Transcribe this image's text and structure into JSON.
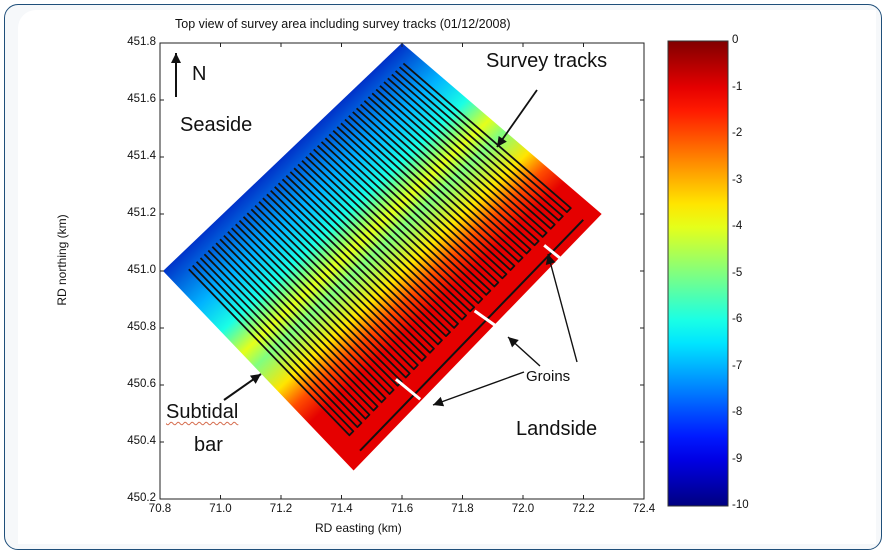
{
  "chart_data": {
    "type": "heatmap",
    "title": "Top view of survey area including survey tracks (01/12/2008)",
    "xlabel": "RD easting (km)",
    "ylabel": "RD northing (km)",
    "xlim": [
      70.8,
      72.4
    ],
    "ylim": [
      450.2,
      451.8
    ],
    "x_ticks": [
      "70.8",
      "71.0",
      "71.2",
      "71.4",
      "71.6",
      "71.8",
      "72.0",
      "72.2",
      "72.4"
    ],
    "y_ticks": [
      "450.2",
      "450.4",
      "450.6",
      "450.8",
      "451.0",
      "451.2",
      "451.4",
      "451.6",
      "451.8"
    ],
    "colorbar": {
      "range": [
        -10,
        0
      ],
      "ticks": [
        "0",
        "-1",
        "-2",
        "-3",
        "-4",
        "-5",
        "-6",
        "-7",
        "-8",
        "-9",
        "-10"
      ],
      "colormap": "jet"
    },
    "grid": false,
    "annotations": {
      "north": "N",
      "seaside": "Seaside",
      "landside": "Landside",
      "survey_tracks": "Survey tracks",
      "groins": "Groins",
      "subtidal_line1": "Subtidal",
      "subtidal_line2": "bar"
    },
    "survey_area_corners": [
      [
        70.81,
        451.0
      ],
      [
        71.6,
        451.8
      ],
      [
        72.26,
        451.2
      ],
      [
        71.44,
        450.3
      ]
    ],
    "depth_profile_cross_shore": [
      {
        "t": 0.0,
        "depth": -9.5
      },
      {
        "t": 0.3,
        "depth": -7.0
      },
      {
        "t": 0.45,
        "depth": -6.0
      },
      {
        "t": 0.58,
        "depth": -4.0
      },
      {
        "t": 0.66,
        "depth": -5.0
      },
      {
        "t": 0.8,
        "depth": -3.5
      },
      {
        "t": 0.9,
        "depth": -2.0
      },
      {
        "t": 1.0,
        "depth": -1.0
      }
    ],
    "groins": [
      {
        "x1": 71.58,
        "y1": 450.62,
        "x2": 71.66,
        "y2": 450.55
      },
      {
        "x1": 71.84,
        "y1": 450.86,
        "x2": 71.92,
        "y2": 450.8
      },
      {
        "x1": 72.07,
        "y1": 451.09,
        "x2": 72.14,
        "y2": 451.03
      }
    ]
  }
}
